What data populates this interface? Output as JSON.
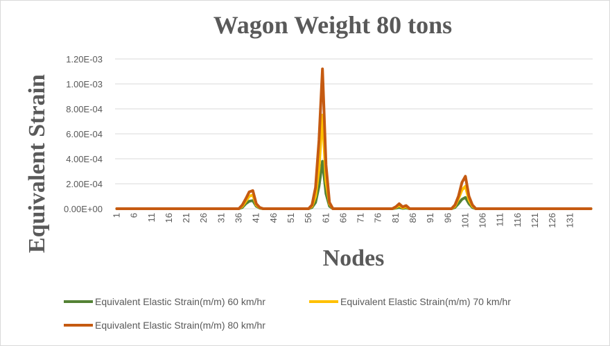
{
  "chart_data": {
    "type": "line",
    "title": "Wagon Weight 80 tons",
    "xlabel": "Nodes",
    "ylabel": "Equivalent Strain",
    "x_start": 1,
    "x_end": 137,
    "x_tick_labels": [
      "1",
      "6",
      "11",
      "16",
      "21",
      "26",
      "31",
      "36",
      "41",
      "46",
      "51",
      "56",
      "61",
      "66",
      "71",
      "76",
      "81",
      "86",
      "91",
      "96",
      "101",
      "106",
      "111",
      "116",
      "121",
      "126",
      "131"
    ],
    "y_tick_labels": [
      "0.00E+00",
      "2.00E-04",
      "4.00E-04",
      "6.00E-04",
      "8.00E-04",
      "1.00E-03",
      "1.20E-03"
    ],
    "ylim": [
      0,
      0.0012
    ],
    "grid": true,
    "legend_position": "bottom",
    "series": [
      {
        "name": "Equivalent Elastic Strain(m/m) 60 km/hr",
        "color": "#548235",
        "points": [
          [
            1,
            0
          ],
          [
            36,
            0
          ],
          [
            37,
            1e-05
          ],
          [
            38,
            4e-05
          ],
          [
            39,
            6e-05
          ],
          [
            40,
            6.5e-05
          ],
          [
            41,
            2e-05
          ],
          [
            42,
            5e-06
          ],
          [
            43,
            0
          ],
          [
            56,
            0
          ],
          [
            57,
            1e-05
          ],
          [
            58,
            5e-05
          ],
          [
            59,
            0.00018
          ],
          [
            60,
            0.00038
          ],
          [
            61,
            0.00012
          ],
          [
            62,
            2e-05
          ],
          [
            63,
            0
          ],
          [
            80,
            0
          ],
          [
            81,
            5e-06
          ],
          [
            82,
            1e-05
          ],
          [
            83,
            3e-06
          ],
          [
            84,
            6e-06
          ],
          [
            85,
            0
          ],
          [
            97,
            0
          ],
          [
            98,
            1e-05
          ],
          [
            99,
            4e-05
          ],
          [
            100,
            7.5e-05
          ],
          [
            101,
            9e-05
          ],
          [
            102,
            4e-05
          ],
          [
            103,
            1e-05
          ],
          [
            104,
            0
          ],
          [
            137,
            0
          ]
        ]
      },
      {
        "name": "Equivalent Elastic Strain(m/m) 70 km/hr",
        "color": "#ffc000",
        "points": [
          [
            1,
            0
          ],
          [
            36,
            0
          ],
          [
            37,
            2e-05
          ],
          [
            38,
            6e-05
          ],
          [
            39,
            0.0001
          ],
          [
            40,
            0.00011
          ],
          [
            41,
            3e-05
          ],
          [
            42,
            8e-06
          ],
          [
            43,
            0
          ],
          [
            56,
            0
          ],
          [
            57,
            2e-05
          ],
          [
            58,
            0.0001
          ],
          [
            59,
            0.00032
          ],
          [
            60,
            0.00075
          ],
          [
            61,
            0.00022
          ],
          [
            62,
            4e-05
          ],
          [
            63,
            0
          ],
          [
            80,
            0
          ],
          [
            81,
            1e-05
          ],
          [
            82,
            2.5e-05
          ],
          [
            83,
            8e-06
          ],
          [
            84,
            1.5e-05
          ],
          [
            85,
            0
          ],
          [
            97,
            0
          ],
          [
            98,
            2e-05
          ],
          [
            99,
            8e-05
          ],
          [
            100,
            0.00015
          ],
          [
            101,
            0.00018
          ],
          [
            102,
            7e-05
          ],
          [
            103,
            2e-05
          ],
          [
            104,
            0
          ],
          [
            137,
            0
          ]
        ]
      },
      {
        "name": "Equivalent Elastic Strain(m/m) 80 km/hr",
        "color": "#c55a11",
        "points": [
          [
            1,
            0
          ],
          [
            36,
            0
          ],
          [
            37,
            3e-05
          ],
          [
            38,
            8e-05
          ],
          [
            39,
            0.000135
          ],
          [
            40,
            0.000145
          ],
          [
            41,
            4e-05
          ],
          [
            42,
            1e-05
          ],
          [
            43,
            0
          ],
          [
            56,
            0
          ],
          [
            57,
            3e-05
          ],
          [
            58,
            0.00017
          ],
          [
            59,
            0.00055
          ],
          [
            60,
            0.00112
          ],
          [
            61,
            0.00035
          ],
          [
            62,
            5e-05
          ],
          [
            63,
            0
          ],
          [
            80,
            0
          ],
          [
            81,
            1.5e-05
          ],
          [
            82,
            4e-05
          ],
          [
            83,
            1.5e-05
          ],
          [
            84,
            2.5e-05
          ],
          [
            85,
            0
          ],
          [
            97,
            0
          ],
          [
            98,
            3e-05
          ],
          [
            99,
            0.0001
          ],
          [
            100,
            0.00021
          ],
          [
            101,
            0.00026
          ],
          [
            102,
            0.0001
          ],
          [
            103,
            3e-05
          ],
          [
            104,
            0
          ],
          [
            137,
            0
          ]
        ]
      }
    ]
  }
}
